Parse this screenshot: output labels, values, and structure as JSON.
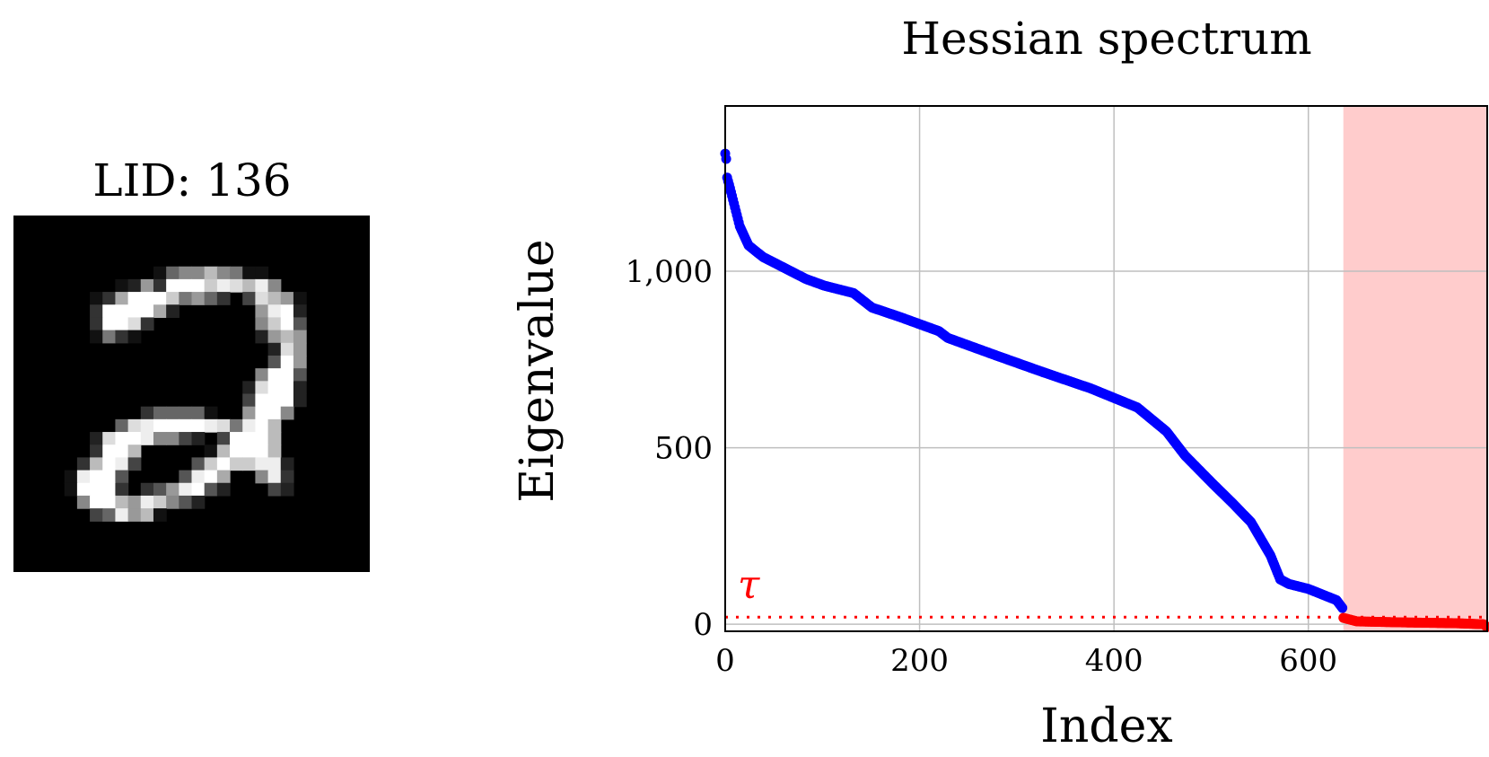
{
  "image_panel": {
    "title": "LID: 136",
    "pixels": [
      "0000000000000000000000000000",
      "0000000000000000000000000000",
      "0000000000000000000000000000",
      "0000000000000000000000000000",
      "00000000000168 8b871100000000",
      "000000001293fffcedbe80000000",
      "00000013afffc796304db9100000",
      "0000003ffffa20000009ef200000",
      "0000003ffd3000000008cf500000",
      "00000017310000000002 9b900000",
      "000000000000000000002d900000",
      "000000000000000000005f900000",
      "00000000000000000008ff500000",
      "0000000000000000002dff200000",
      "0000000000000000004fff200000",
      "0000000000366661009ff8000000",
      "000000006deffffed7efb0000000",
      "0000002dffe884204fffb0000000",
      "0000003ffb000001bfffb0000000",
      "000003bfe400005cfccee2000000",
      "00001eff500005efa008e3000000",
      "00001fff30359ef5200042000000",
      "000008ffb9ec8520000000000000",
      "00000046e9b10000000000000000",
      "0000000000000000000000000000",
      "0000000000000000000000000000",
      "0000000000000000000000000000",
      "0000000000000000000000000000"
    ]
  },
  "chart_data": {
    "type": "scatter",
    "title": "Hessian spectrum",
    "xlabel": "Index",
    "ylabel": "Eigenvalue",
    "xlim": [
      0,
      784
    ],
    "ylim": [
      -20,
      1468
    ],
    "grid": true,
    "x_ticks": [
      {
        "value": 0,
        "label": "0"
      },
      {
        "value": 200,
        "label": "200"
      },
      {
        "value": 400,
        "label": "400"
      },
      {
        "value": 600,
        "label": "600"
      }
    ],
    "y_ticks": [
      {
        "value": 0,
        "label": "0"
      },
      {
        "value": 500,
        "label": "500"
      },
      {
        "value": 1000,
        "label": "1,000"
      }
    ],
    "threshold": {
      "label": "τ",
      "value": 20,
      "color": "#ff0000"
    },
    "shaded_region": {
      "x_start": 636,
      "x_end": 784,
      "color": "#ffcccc"
    },
    "series": [
      {
        "color": "#0000ff",
        "points": [
          [
            0,
            1333
          ],
          [
            1,
            1318
          ],
          [
            2,
            1265
          ],
          [
            5,
            1235
          ],
          [
            15,
            1127
          ],
          [
            24,
            1073
          ],
          [
            39,
            1040
          ],
          [
            54,
            1019
          ],
          [
            83,
            978
          ],
          [
            102,
            959
          ],
          [
            132,
            938
          ],
          [
            151,
            897
          ],
          [
            180,
            870
          ],
          [
            220,
            830
          ],
          [
            229,
            811
          ],
          [
            278,
            762
          ],
          [
            327,
            714
          ],
          [
            376,
            668
          ],
          [
            424,
            614
          ],
          [
            454,
            546
          ],
          [
            473,
            478
          ],
          [
            502,
            397
          ],
          [
            522,
            343
          ],
          [
            541,
            289
          ],
          [
            561,
            195
          ],
          [
            571,
            127
          ],
          [
            580,
            114
          ],
          [
            600,
            100
          ],
          [
            629,
            68
          ],
          [
            635,
            46
          ]
        ]
      },
      {
        "color": "#ff0000",
        "points": [
          [
            636,
            18
          ],
          [
            650,
            8
          ],
          [
            700,
            5
          ],
          [
            750,
            3
          ],
          [
            780,
            0
          ],
          [
            784,
            -8
          ]
        ]
      }
    ]
  }
}
